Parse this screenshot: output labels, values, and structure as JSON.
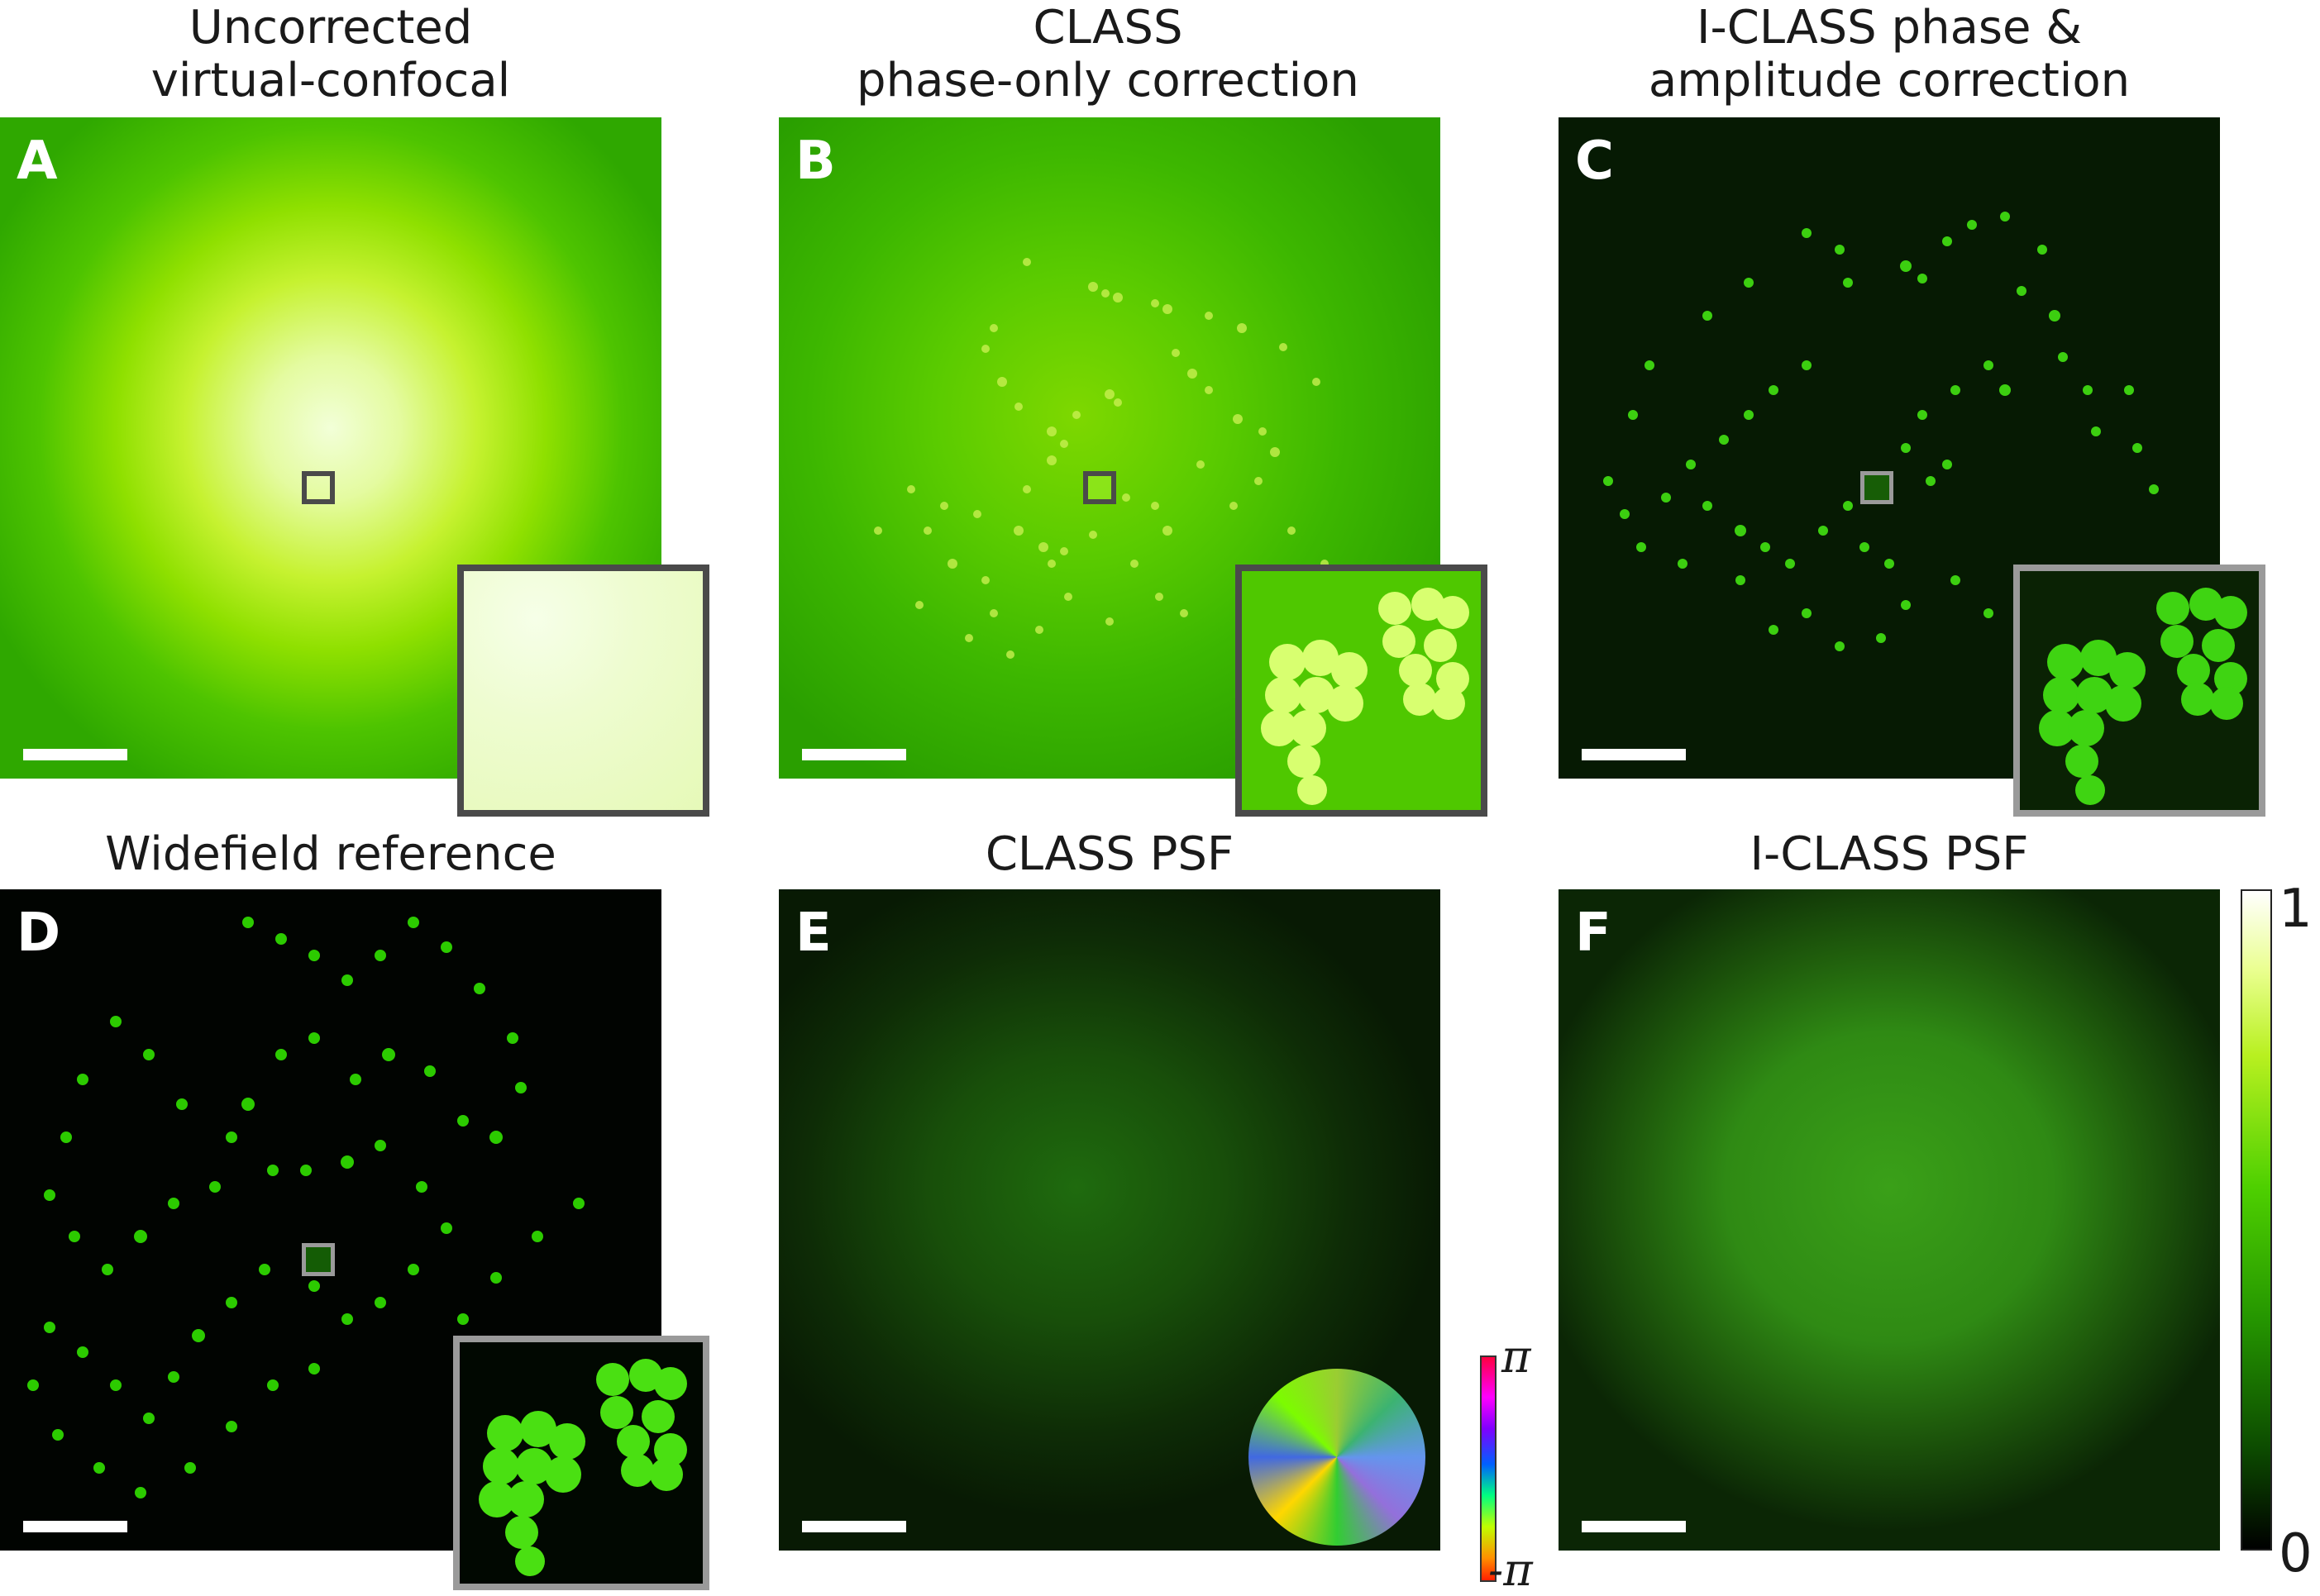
{
  "panels": [
    {
      "letter": "A",
      "title_line1": "Uncorrected",
      "title_line2": "virtual-confocal"
    },
    {
      "letter": "B",
      "title_line1": "CLASS",
      "title_line2": "phase-only correction"
    },
    {
      "letter": "C",
      "title_line1": "I-CLASS phase &",
      "title_line2": "amplitude correction"
    },
    {
      "letter": "D",
      "title_line1": "Widefield reference",
      "title_line2": ""
    },
    {
      "letter": "E",
      "title_line1": "CLASS PSF",
      "title_line2": ""
    },
    {
      "letter": "F",
      "title_line1": "I-CLASS PSF",
      "title_line2": ""
    }
  ],
  "colorbar": {
    "max_label": "1",
    "min_label": "0",
    "colormap": "black-green-yellow-white"
  },
  "phase_colorbar": {
    "max_label": "π",
    "min_label": "-π"
  },
  "colors": {
    "accent_green": "#2fa000",
    "roi_dark": "#4a4a4a",
    "roi_light": "#9a9a9a"
  }
}
